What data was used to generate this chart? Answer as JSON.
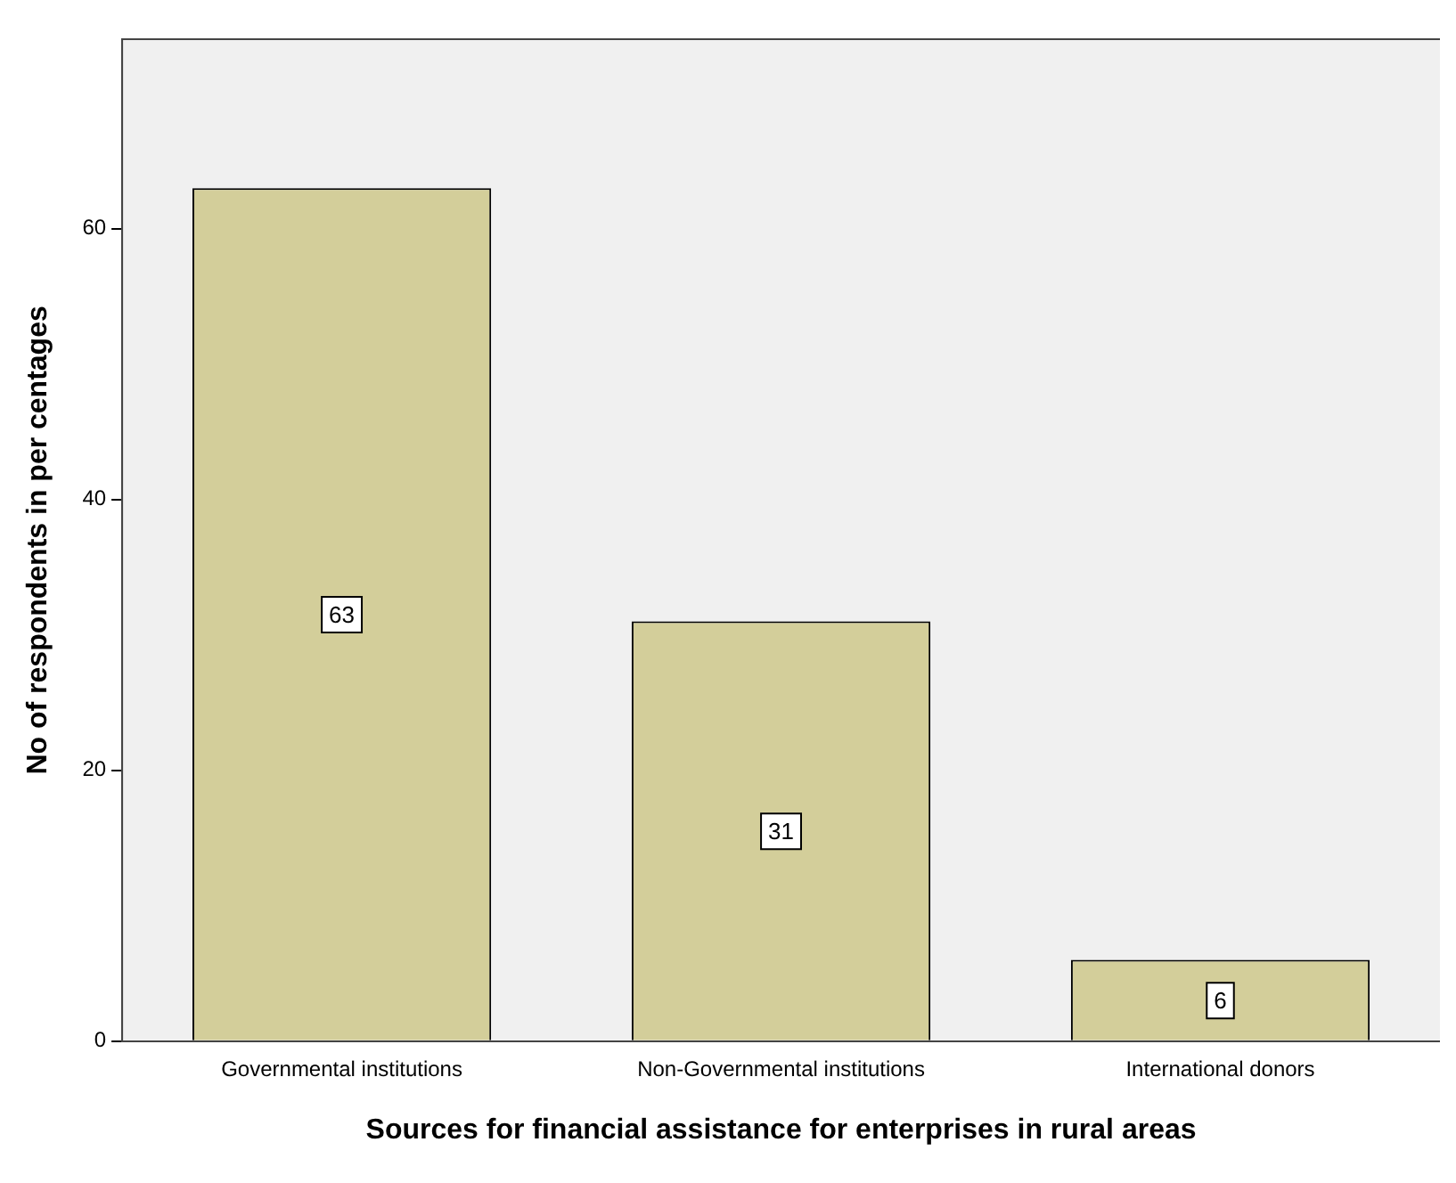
{
  "chart_data": {
    "type": "bar",
    "xlabel": "Sources for financial assistance for enterprises in rural areas",
    "ylabel": "No of respondents in per centages",
    "categories": [
      "Governmental institutions",
      "Non-Governmental institutions",
      "International donors"
    ],
    "values": [
      63,
      31,
      6
    ],
    "color": "#d3ce9a",
    "ylim": [
      0,
      74
    ],
    "yticks": [
      0,
      20,
      40,
      60
    ],
    "grid": false,
    "legend": false,
    "data_labels": true
  }
}
